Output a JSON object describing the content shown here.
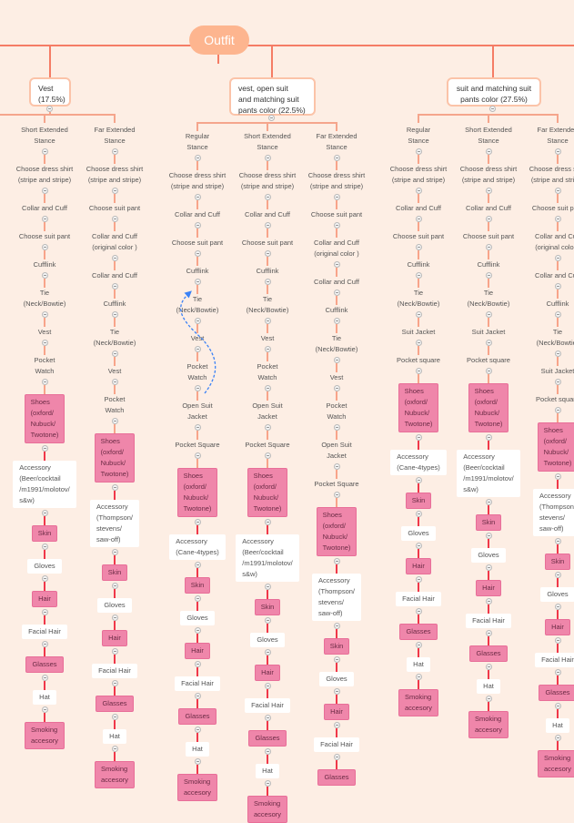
{
  "root": {
    "label": "Outfit"
  },
  "colors": {
    "background": "#fdeee4",
    "root": "#fdb58f",
    "branch": "#f57c65",
    "highlight": "#ef86aa",
    "arrow": "#3b82f6"
  },
  "groups": [
    {
      "label": "Vest\n(17.5%)",
      "columns": [
        {
          "items": [
            {
              "t": "Short Extended\nStance"
            },
            {
              "t": "Choose dress shirt\n(stripe and stripe)"
            },
            {
              "t": "Collar and Cuff"
            },
            {
              "t": "Choose suit pant"
            },
            {
              "t": "Cufflink"
            },
            {
              "t": "Tie\n(Neck/Bowtie)"
            },
            {
              "t": "Vest"
            },
            {
              "t": "Pocket\nWatch"
            },
            {
              "t": "Shoes\n(oxford/\nNubuck/\nTwotone)",
              "s": "pink"
            },
            {
              "t": "Accessory\n(Beer/cocktail\n/m1991/molotov/\ns&w)",
              "s": "white"
            },
            {
              "t": "Skin",
              "s": "pink"
            },
            {
              "t": "Gloves",
              "s": "white"
            },
            {
              "t": "Hair",
              "s": "pink"
            },
            {
              "t": "Facial Hair",
              "s": "white"
            },
            {
              "t": "Glasses",
              "s": "pink"
            },
            {
              "t": "Hat",
              "s": "white"
            },
            {
              "t": "Smoking\naccesory",
              "s": "pink"
            }
          ]
        },
        {
          "items": [
            {
              "t": "Far Extended\nStance"
            },
            {
              "t": "Choose dress shirt\n(stripe and stripe)"
            },
            {
              "t": "Choose suit pant"
            },
            {
              "t": "Collar and Cuff\n(original color )"
            },
            {
              "t": "Collar and Cuff"
            },
            {
              "t": "Cufflink"
            },
            {
              "t": "Tie\n(Neck/Bowtie)"
            },
            {
              "t": "Vest"
            },
            {
              "t": "Pocket\nWatch"
            },
            {
              "t": "Shoes\n(oxford/\nNubuck/\nTwotone)",
              "s": "pink"
            },
            {
              "t": "Accessory\n(Thompson/\nstevens/\nsaw-off)",
              "s": "white"
            },
            {
              "t": "Skin",
              "s": "pink"
            },
            {
              "t": "Gloves",
              "s": "white"
            },
            {
              "t": "Hair",
              "s": "pink"
            },
            {
              "t": "Facial Hair",
              "s": "white"
            },
            {
              "t": "Glasses",
              "s": "pink"
            },
            {
              "t": "Hat",
              "s": "white"
            },
            {
              "t": "Smoking\naccesory",
              "s": "pink"
            }
          ]
        }
      ]
    },
    {
      "label": "vest, open suit\nand matching suit\npants color (22.5%)",
      "columns": [
        {
          "items": [
            {
              "t": "Regular\nStance"
            },
            {
              "t": "Choose dress shirt\n(stripe and stripe)"
            },
            {
              "t": "Collar and Cuff"
            },
            {
              "t": "Choose suit pant"
            },
            {
              "t": "Cufflink"
            },
            {
              "t": "Tie\n(Neck/Bowtie)"
            },
            {
              "t": "Vest"
            },
            {
              "t": "Pocket\nWatch"
            },
            {
              "t": "Open Suit\nJacket"
            },
            {
              "t": "Pocket Square"
            },
            {
              "t": "Shoes\n(oxford/\nNubuck/\nTwotone)",
              "s": "pink"
            },
            {
              "t": "Accessory\n(Cane-4types)",
              "s": "white"
            },
            {
              "t": "Skin",
              "s": "pink"
            },
            {
              "t": "Gloves",
              "s": "white"
            },
            {
              "t": "Hair",
              "s": "pink"
            },
            {
              "t": "Facial Hair",
              "s": "white"
            },
            {
              "t": "Glasses",
              "s": "pink"
            },
            {
              "t": "Hat",
              "s": "white"
            },
            {
              "t": "Smoking\naccesory",
              "s": "pink"
            }
          ]
        },
        {
          "items": [
            {
              "t": "Short Extended\nStance"
            },
            {
              "t": "Choose dress shirt\n(stripe and stripe)"
            },
            {
              "t": "Collar and Cuff"
            },
            {
              "t": "Choose suit pant"
            },
            {
              "t": "Cufflink"
            },
            {
              "t": "Tie\n(Neck/Bowtie)"
            },
            {
              "t": "Vest"
            },
            {
              "t": "Pocket\nWatch"
            },
            {
              "t": "Open Suit\nJacket"
            },
            {
              "t": "Pocket Square"
            },
            {
              "t": "Shoes\n(oxford/\nNubuck/\nTwotone)",
              "s": "pink"
            },
            {
              "t": "Accessory\n(Beer/cocktail\n/m1991/molotov/\ns&w)",
              "s": "white"
            },
            {
              "t": "Skin",
              "s": "pink"
            },
            {
              "t": "Gloves",
              "s": "white"
            },
            {
              "t": "Hair",
              "s": "pink"
            },
            {
              "t": "Facial Hair",
              "s": "white"
            },
            {
              "t": "Glasses",
              "s": "pink"
            },
            {
              "t": "Hat",
              "s": "white"
            },
            {
              "t": "Smoking\naccesory",
              "s": "pink"
            }
          ]
        },
        {
          "items": [
            {
              "t": "Far Extended\nStance"
            },
            {
              "t": "Choose dress shirt\n(stripe and stripe)"
            },
            {
              "t": "Choose suit pant"
            },
            {
              "t": "Collar and Cuff\n(original color )"
            },
            {
              "t": "Collar and Cuff"
            },
            {
              "t": "Cufflink"
            },
            {
              "t": "Tie\n(Neck/Bowtie)"
            },
            {
              "t": "Vest"
            },
            {
              "t": "Pocket\nWatch"
            },
            {
              "t": "Open Suit\nJacket"
            },
            {
              "t": "Pocket Square"
            },
            {
              "t": "Shoes\n(oxford/\nNubuck/\nTwotone)",
              "s": "pink"
            },
            {
              "t": "Accessory\n(Thompson/\nstevens/\nsaw-off)",
              "s": "white"
            },
            {
              "t": "Skin",
              "s": "pink"
            },
            {
              "t": "Gloves",
              "s": "white"
            },
            {
              "t": "Hair",
              "s": "pink"
            },
            {
              "t": "Facial Hair",
              "s": "white"
            },
            {
              "t": "Glasses",
              "s": "pink"
            }
          ]
        }
      ]
    },
    {
      "label": "suit and matching suit\npants color (27.5%)",
      "columns": [
        {
          "items": [
            {
              "t": "Regular\nStance"
            },
            {
              "t": "Choose dress shirt\n(stripe and stripe)"
            },
            {
              "t": "Collar and Cuff"
            },
            {
              "t": "Choose suit pant"
            },
            {
              "t": "Cufflink"
            },
            {
              "t": "Tie\n(Neck/Bowtie)"
            },
            {
              "t": "Suit Jacket"
            },
            {
              "t": "Pocket square"
            },
            {
              "t": "Shoes\n(oxford/\nNubuck/\nTwotone)",
              "s": "pink"
            },
            {
              "t": "Accessory\n(Cane-4types)",
              "s": "white"
            },
            {
              "t": "Skin",
              "s": "pink"
            },
            {
              "t": "Gloves",
              "s": "white"
            },
            {
              "t": "Hair",
              "s": "pink"
            },
            {
              "t": "Facial Hair",
              "s": "white"
            },
            {
              "t": "Glasses",
              "s": "pink"
            },
            {
              "t": "Hat",
              "s": "white"
            },
            {
              "t": "Smoking\naccesory",
              "s": "pink"
            }
          ]
        },
        {
          "items": [
            {
              "t": "Short Extended\nStance"
            },
            {
              "t": "Choose dress shirt\n(stripe and stripe)"
            },
            {
              "t": "Collar and Cuff"
            },
            {
              "t": "Choose suit pant"
            },
            {
              "t": "Cufflink"
            },
            {
              "t": "Tie\n(Neck/Bowtie)"
            },
            {
              "t": "Suit Jacket"
            },
            {
              "t": "Pocket square"
            },
            {
              "t": "Shoes\n(oxford/\nNubuck/\nTwotone)",
              "s": "pink"
            },
            {
              "t": "Accessory\n(Beer/cocktail\n/m1991/molotov/\ns&w)",
              "s": "white"
            },
            {
              "t": "Skin",
              "s": "pink"
            },
            {
              "t": "Gloves",
              "s": "white"
            },
            {
              "t": "Hair",
              "s": "pink"
            },
            {
              "t": "Facial Hair",
              "s": "white"
            },
            {
              "t": "Glasses",
              "s": "pink"
            },
            {
              "t": "Hat",
              "s": "white"
            },
            {
              "t": "Smoking\naccesory",
              "s": "pink"
            }
          ]
        },
        {
          "items": [
            {
              "t": "Far Extended\nStance"
            },
            {
              "t": "Choose dress shirt\n(stripe and stripe)"
            },
            {
              "t": "Choose suit pant"
            },
            {
              "t": "Collar and Cuff\n(original color )"
            },
            {
              "t": "Collar and Cuff"
            },
            {
              "t": "Cufflink"
            },
            {
              "t": "Tie\n(Neck/Bowtie)"
            },
            {
              "t": "Suit Jacket"
            },
            {
              "t": "Pocket square"
            },
            {
              "t": "Shoes\n(oxford/\nNubuck/\nTwotone)",
              "s": "pink"
            },
            {
              "t": "Accessory\n(Thompson/\nstevens/\nsaw-off)",
              "s": "white"
            },
            {
              "t": "Skin",
              "s": "pink"
            },
            {
              "t": "Gloves",
              "s": "white"
            },
            {
              "t": "Hair",
              "s": "pink"
            },
            {
              "t": "Facial Hair",
              "s": "white"
            },
            {
              "t": "Glasses",
              "s": "pink"
            },
            {
              "t": "Hat",
              "s": "white"
            },
            {
              "t": "Smoking\naccesory",
              "s": "pink"
            }
          ]
        }
      ]
    }
  ]
}
